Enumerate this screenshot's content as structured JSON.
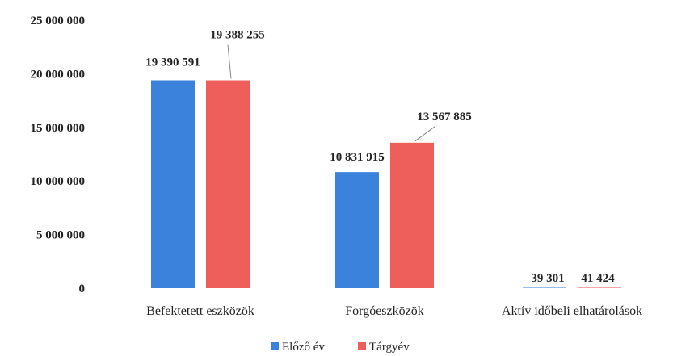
{
  "chart_data": {
    "type": "bar",
    "categories": [
      "Befektetett eszközök",
      "Forgóeszközök",
      "Aktív időbeli elhatárolások"
    ],
    "series": [
      {
        "name": "Előző év",
        "values": [
          19390591,
          10831915,
          39301
        ],
        "labels": [
          "19 390 591",
          "10 831 915",
          "39 301"
        ],
        "color": "#3b82dc"
      },
      {
        "name": "Tárgyév",
        "values": [
          19388255,
          13567885,
          41424
        ],
        "labels": [
          "19 388 255",
          "13 567 885",
          "41 424"
        ],
        "color": "#ee5f5b"
      }
    ],
    "ylim": [
      0,
      25000000
    ],
    "yticks": [
      {
        "value": 0,
        "label": "0"
      },
      {
        "value": 5000000,
        "label": "5 000 000"
      },
      {
        "value": 10000000,
        "label": "10 000 000"
      },
      {
        "value": 15000000,
        "label": "15 000 000"
      },
      {
        "value": 20000000,
        "label": "20 000 000"
      },
      {
        "value": 25000000,
        "label": "25 000 000"
      }
    ],
    "grid": false,
    "legend_position": "bottom"
  }
}
